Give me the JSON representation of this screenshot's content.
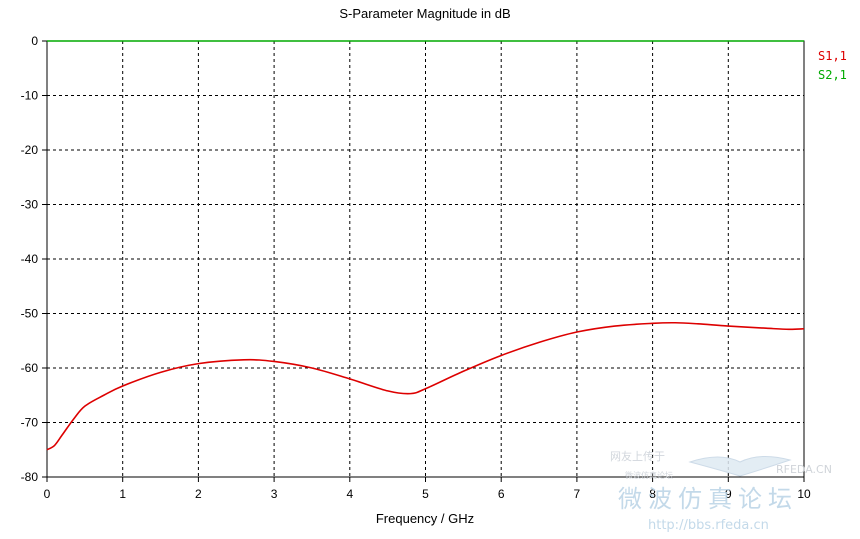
{
  "chart_data": {
    "type": "line",
    "title": "S-Parameter Magnitude in dB",
    "xlabel": "Frequency / GHz",
    "ylabel": "",
    "xlim": [
      0,
      10
    ],
    "ylim": [
      -80,
      0
    ],
    "xticks": [
      "0",
      "1",
      "2",
      "3",
      "4",
      "5",
      "6",
      "7",
      "8",
      "9",
      "10"
    ],
    "yticks": [
      "0",
      "-10",
      "-20",
      "-30",
      "-40",
      "-50",
      "-60",
      "-70",
      "-80"
    ],
    "grid": true,
    "legend_position": "right",
    "series": [
      {
        "name": "S1,1",
        "color": "#dd0000",
        "x": [
          0,
          0.1,
          0.2,
          0.35,
          0.5,
          0.75,
          1.0,
          1.5,
          2.0,
          2.6,
          3.0,
          3.5,
          4.0,
          4.5,
          4.8,
          5.0,
          5.5,
          6.0,
          6.5,
          7.0,
          7.5,
          8.0,
          8.3,
          8.6,
          9.0,
          9.5,
          9.8,
          10.0
        ],
        "y": [
          -75.0,
          -74.2,
          -72.3,
          -69.4,
          -67.0,
          -65.0,
          -63.3,
          -60.8,
          -59.2,
          -58.5,
          -58.8,
          -60.0,
          -62.0,
          -64.2,
          -64.7,
          -63.8,
          -60.6,
          -57.7,
          -55.3,
          -53.4,
          -52.3,
          -51.8,
          -51.7,
          -51.9,
          -52.3,
          -52.7,
          -52.9,
          -52.8
        ]
      },
      {
        "name": "S2,1",
        "color": "#00aa00",
        "x": [
          0,
          10
        ],
        "y": [
          0,
          0
        ]
      }
    ]
  },
  "watermark": {
    "site": "RFEDA.CN",
    "forum": "微波仿真论坛",
    "url": "http://bbs.rfeda.cn",
    "small_top": "网友上传于",
    "small_bottom": "微波仿真论坛"
  }
}
